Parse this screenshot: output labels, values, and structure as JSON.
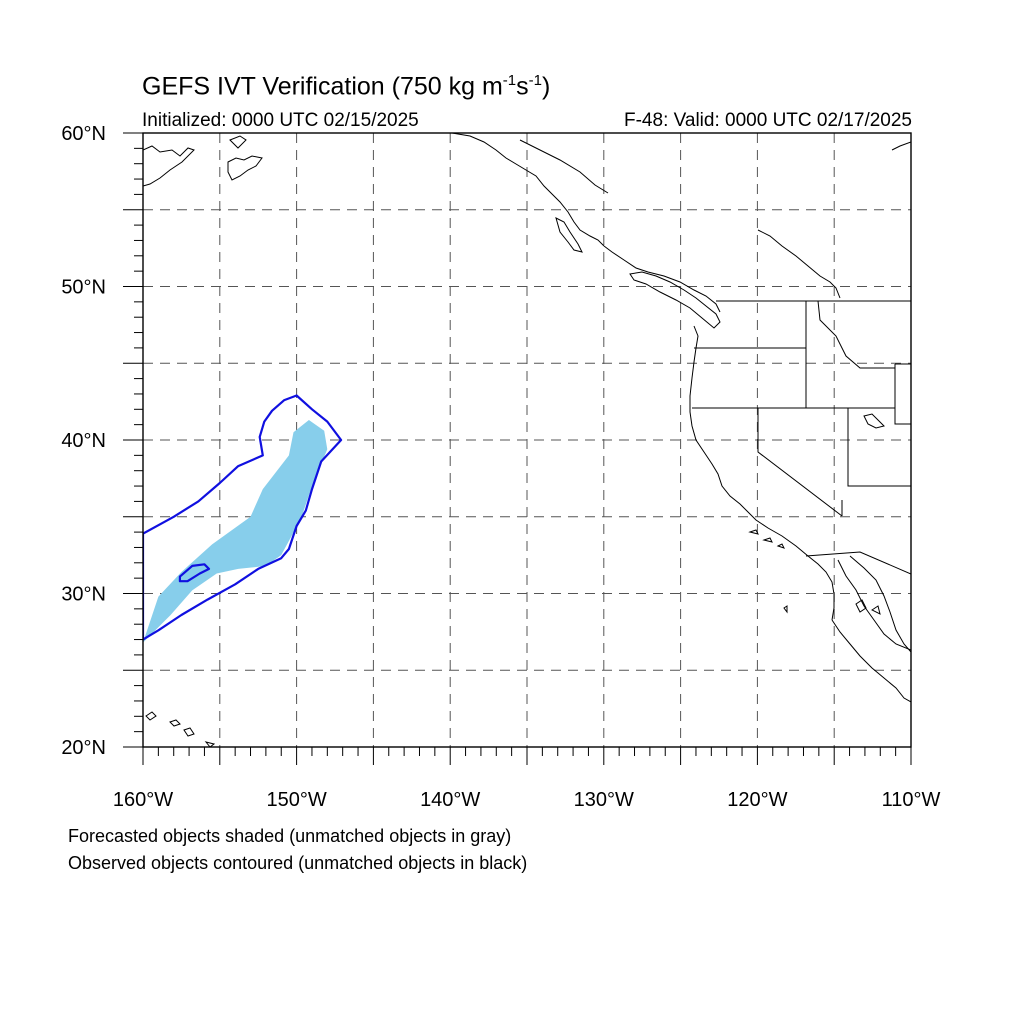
{
  "header": {
    "title_main": "GEFS IVT Verification (750 kg m",
    "title_exp1": "-1",
    "title_mid": "s",
    "title_exp2": "-1",
    "title_end": ")",
    "initialized": "Initialized: 0000 UTC 02/15/2025",
    "valid": "F-48: Valid: 0000 UTC 02/17/2025"
  },
  "map": {
    "lon_range": [
      -160,
      -110
    ],
    "lat_range": [
      20,
      60
    ],
    "grid_interval_deg": 5,
    "gridlines": "dashed",
    "lat_labels": [
      "20°N",
      "30°N",
      "40°N",
      "50°N",
      "60°N"
    ],
    "lon_labels": [
      "160°W",
      "150°W",
      "140°W",
      "130°W",
      "120°W",
      "110°W"
    ],
    "colors": {
      "forecast_fill": "#87ceeb",
      "observed_contour": "#1010e0",
      "coastline": "#000000",
      "grid": "#555555"
    },
    "forecast_object": {
      "label": "matched forecast object (shaded)",
      "lonlat": [
        [
          -160,
          26.8
        ],
        [
          -159,
          29.8
        ],
        [
          -157.5,
          31.4
        ],
        [
          -155.5,
          33.2
        ],
        [
          -153,
          35.0
        ],
        [
          -152.2,
          36.8
        ],
        [
          -150.5,
          39.0
        ],
        [
          -150.2,
          40.5
        ],
        [
          -149.2,
          41.3
        ],
        [
          -148.2,
          40.6
        ],
        [
          -148.0,
          39.4
        ],
        [
          -149.0,
          37.0
        ],
        [
          -149.6,
          35.2
        ],
        [
          -150.3,
          33.8
        ],
        [
          -151.0,
          32.5
        ],
        [
          -152.0,
          31.8
        ],
        [
          -153.8,
          31.6
        ],
        [
          -155.2,
          31.3
        ],
        [
          -156.8,
          30.2
        ],
        [
          -158.2,
          28.6
        ]
      ]
    },
    "observed_objects": [
      {
        "label": "matched observed object (contour)",
        "lonlat": [
          [
            -160,
            27.0
          ],
          [
            -159,
            27.6
          ],
          [
            -157.5,
            28.6
          ],
          [
            -155.8,
            29.6
          ],
          [
            -154,
            30.6
          ],
          [
            -152.5,
            31.6
          ],
          [
            -151.0,
            32.3
          ],
          [
            -150.5,
            32.9
          ],
          [
            -150.0,
            34.4
          ],
          [
            -149.4,
            35.4
          ],
          [
            -149.0,
            36.8
          ],
          [
            -148.4,
            38.6
          ],
          [
            -147.1,
            40.0
          ],
          [
            -148.0,
            41.2
          ],
          [
            -149.0,
            42.0
          ],
          [
            -150.0,
            42.9
          ],
          [
            -150.8,
            42.6
          ],
          [
            -151.6,
            41.9
          ],
          [
            -152.1,
            41.2
          ],
          [
            -152.4,
            40.2
          ],
          [
            -152.2,
            39.0
          ],
          [
            -153.8,
            38.3
          ],
          [
            -155,
            37.2
          ],
          [
            -156.4,
            36.0
          ],
          [
            -158,
            35.0
          ],
          [
            -160,
            33.9
          ]
        ]
      },
      {
        "label": "matched observed object (small contour)",
        "lonlat": [
          [
            -157.6,
            31.1
          ],
          [
            -156.8,
            31.8
          ],
          [
            -156.0,
            31.9
          ],
          [
            -155.7,
            31.6
          ],
          [
            -156.3,
            31.3
          ],
          [
            -157.1,
            30.8
          ],
          [
            -157.6,
            30.8
          ]
        ]
      }
    ]
  },
  "notes": {
    "line1": "Forecasted objects shaded (unmatched objects in gray)",
    "line2": "Observed objects contoured (unmatched objects in black)"
  }
}
